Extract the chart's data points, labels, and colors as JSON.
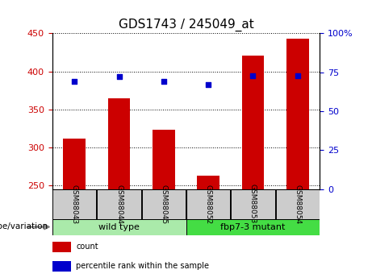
{
  "title": "GDS1743 / 245049_at",
  "categories": [
    "GSM88043",
    "GSM88044",
    "GSM88045",
    "GSM88052",
    "GSM88053",
    "GSM88054"
  ],
  "count_values": [
    311,
    365,
    323,
    263,
    421,
    443
  ],
  "percentile_values": [
    69,
    72,
    69,
    67,
    73,
    73
  ],
  "ylim_left": [
    245,
    450
  ],
  "ylim_right": [
    0,
    100
  ],
  "yticks_left": [
    250,
    300,
    350,
    400,
    450
  ],
  "yticks_right": [
    0,
    25,
    50,
    75,
    100
  ],
  "bar_color": "#cc0000",
  "dot_color": "#0000cc",
  "background_color": "#ffffff",
  "wildtype_color": "#aaeaaa",
  "mutant_color": "#44dd44",
  "label_box_color": "#cccccc",
  "groups": [
    {
      "label": "wild type",
      "start": 0,
      "end": 3
    },
    {
      "label": "fbp7-3 mutant",
      "start": 3,
      "end": 6
    }
  ],
  "genotype_label": "genotype/variation",
  "legend_items": [
    {
      "label": "count",
      "color": "#cc0000"
    },
    {
      "label": "percentile rank within the sample",
      "color": "#0000cc"
    }
  ],
  "title_fontsize": 11,
  "tick_fontsize": 8,
  "cat_fontsize": 6.5,
  "group_fontsize": 8,
  "legend_fontsize": 7,
  "genotype_fontsize": 7.5
}
